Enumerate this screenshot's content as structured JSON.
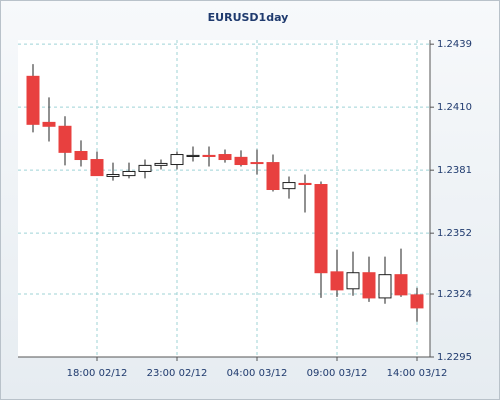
{
  "chart_data": {
    "type": "candlestick",
    "title": "EURUSD1day",
    "categories": [
      null,
      null,
      null,
      null,
      "18:00 02/12",
      null,
      null,
      null,
      null,
      "23:00 02/12",
      null,
      null,
      null,
      null,
      "04:00 03/12",
      null,
      null,
      null,
      null,
      "09:00 03/12",
      null,
      null,
      null,
      null,
      "14:00 03/12"
    ],
    "open": [
      1.24242,
      1.2403,
      1.24012,
      1.23896,
      1.23859,
      1.23781,
      1.23785,
      1.23804,
      1.23832,
      1.23836,
      1.23873,
      1.23878,
      1.23882,
      1.23869,
      1.23845,
      1.23845,
      1.23725,
      1.23749,
      1.23744,
      1.23342,
      1.23264,
      1.23338,
      1.23222,
      1.23329,
      1.23236
    ],
    "high": [
      1.24298,
      1.24145,
      1.24058,
      1.23947,
      1.23896,
      1.23845,
      1.23845,
      1.23859,
      1.23859,
      1.23896,
      1.23919,
      1.23919,
      1.23905,
      1.23901,
      1.23905,
      1.23882,
      1.23781,
      1.2379,
      1.23758,
      1.23444,
      1.23435,
      1.23412,
      1.23412,
      1.23449,
      1.23269
    ],
    "low": [
      1.23984,
      1.23942,
      1.23832,
      1.23827,
      1.23785,
      1.23762,
      1.23772,
      1.23772,
      1.23813,
      1.23813,
      1.2385,
      1.23827,
      1.23845,
      1.23827,
      1.2379,
      1.23712,
      1.23679,
      1.23615,
      1.23222,
      1.23227,
      1.23232,
      1.23204,
      1.23195,
      1.23227,
      1.23112
    ],
    "close": [
      1.24021,
      1.24012,
      1.23892,
      1.23859,
      1.23785,
      1.2379,
      1.23804,
      1.23832,
      1.23841,
      1.23882,
      1.23878,
      1.23873,
      1.23859,
      1.23836,
      1.23841,
      1.23721,
      1.23753,
      1.23744,
      1.23338,
      1.23259,
      1.23338,
      1.23222,
      1.23329,
      1.23236,
      1.23176
    ],
    "up_color": "#ffffff",
    "down_color": "#e8403f",
    "ylim": [
      1.2295,
      1.244
    ],
    "yticks": [
      1.2295,
      1.2324,
      1.2352,
      1.2381,
      {
        "value": 1.241,
        "label": "1.2410"
      },
      1.2439
    ],
    "grid": true
  }
}
